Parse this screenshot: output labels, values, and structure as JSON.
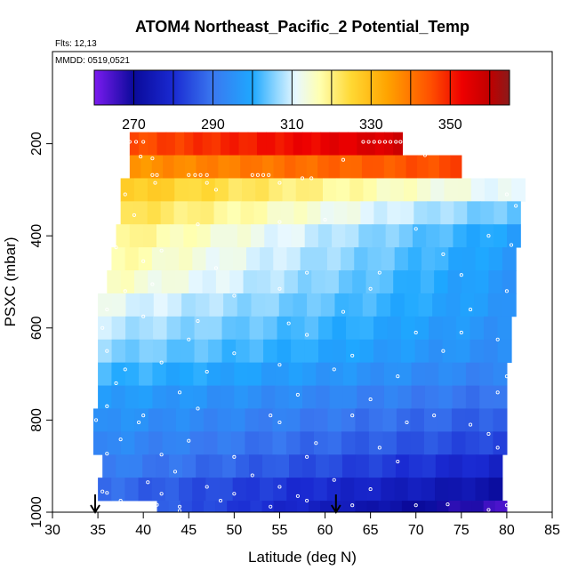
{
  "chart_data": {
    "type": "heatmap",
    "title": "ATOM4 Northeast_Pacific_2 Potential_Temp",
    "flights_label": "Flts: 12,13",
    "dates_label": "MMDD: 0519,0521",
    "xlabel": "Latitude (deg N)",
    "ylabel": "PSXC (mbar)",
    "xlim": [
      30,
      85
    ],
    "ylim": [
      1000,
      0
    ],
    "x_ticks": [
      30,
      35,
      40,
      45,
      50,
      55,
      60,
      65,
      70,
      75,
      80,
      85
    ],
    "y_ticks": [
      200,
      400,
      600,
      800,
      1000
    ],
    "colorbar": {
      "range": [
        260,
        365
      ],
      "ticks": [
        270,
        290,
        310,
        330,
        350
      ],
      "dividers": [
        270,
        280,
        290,
        300,
        310,
        320,
        330,
        340,
        350,
        360
      ],
      "stops": [
        {
          "v": 260,
          "c": "#7c1bf0"
        },
        {
          "v": 270,
          "c": "#0a0a9a"
        },
        {
          "v": 280,
          "c": "#1a2ad2"
        },
        {
          "v": 290,
          "c": "#3a78f0"
        },
        {
          "v": 300,
          "c": "#1ea8ff"
        },
        {
          "v": 306,
          "c": "#8fd6ff"
        },
        {
          "v": 311,
          "c": "#e8f8ff"
        },
        {
          "v": 317,
          "c": "#ffffb0"
        },
        {
          "v": 325,
          "c": "#ffd833"
        },
        {
          "v": 334,
          "c": "#ffa400"
        },
        {
          "v": 345,
          "c": "#ff5000"
        },
        {
          "v": 353,
          "c": "#ee0000"
        },
        {
          "v": 360,
          "c": "#c00000"
        },
        {
          "v": 365,
          "c": "#8b1a1a"
        }
      ]
    },
    "bands": [
      {
        "p": [
          175,
          225
        ],
        "lat": [
          38.5,
          68.5
        ],
        "t": [
          345,
          357
        ]
      },
      {
        "p": [
          225,
          275
        ],
        "lat": [
          38.5,
          75
        ],
        "t": [
          336,
          346
        ]
      },
      {
        "p": [
          275,
          325
        ],
        "lat": [
          37.5,
          82
        ],
        "t": [
          328,
          310
        ]
      },
      {
        "p": [
          325,
          375
        ],
        "lat": [
          37.5,
          81.5
        ],
        "t": [
          324,
          303
        ]
      },
      {
        "p": [
          375,
          425
        ],
        "lat": [
          37,
          81.5
        ],
        "t": [
          320,
          298
        ]
      },
      {
        "p": [
          425,
          475
        ],
        "lat": [
          36.5,
          81
        ],
        "t": [
          318,
          297
        ]
      },
      {
        "p": [
          475,
          525
        ],
        "lat": [
          36,
          81
        ],
        "t": [
          316,
          296
        ]
      },
      {
        "p": [
          525,
          575
        ],
        "lat": [
          35,
          81
        ],
        "t": [
          312,
          296
        ]
      },
      {
        "p": [
          575,
          625
        ],
        "lat": [
          35,
          80.5
        ],
        "t": [
          309,
          295
        ]
      },
      {
        "p": [
          625,
          675
        ],
        "lat": [
          35,
          80.5
        ],
        "t": [
          306,
          294
        ]
      },
      {
        "p": [
          675,
          725
        ],
        "lat": [
          35,
          80
        ],
        "t": [
          302,
          292
        ]
      },
      {
        "p": [
          725,
          775
        ],
        "lat": [
          35,
          80
        ],
        "t": [
          298,
          289
        ]
      },
      {
        "p": [
          775,
          825
        ],
        "lat": [
          34.5,
          80
        ],
        "t": [
          296,
          286
        ]
      },
      {
        "p": [
          825,
          875
        ],
        "lat": [
          34.5,
          80
        ],
        "t": [
          294,
          283
        ]
      },
      {
        "p": [
          875,
          925
        ],
        "lat": [
          35.5,
          79.5
        ],
        "t": [
          292,
          278
        ]
      },
      {
        "p": [
          925,
          975
        ],
        "lat": [
          35,
          79.5
        ],
        "t": [
          289,
          272
        ]
      },
      {
        "p": [
          975,
          1000
        ],
        "lat": [
          41.5,
          80
        ],
        "t": [
          287,
          265
        ]
      }
    ],
    "obs_points": [
      [
        38.5,
        196
      ],
      [
        39.2,
        196
      ],
      [
        40,
        196
      ],
      [
        64.2,
        196
      ],
      [
        64.8,
        196
      ],
      [
        65.4,
        196
      ],
      [
        66,
        196
      ],
      [
        66.6,
        196
      ],
      [
        67.2,
        196
      ],
      [
        67.8,
        196
      ],
      [
        68.3,
        196
      ],
      [
        69.5,
        218
      ],
      [
        71,
        225
      ],
      [
        39.7,
        228
      ],
      [
        41,
        232
      ],
      [
        62,
        235
      ],
      [
        41,
        268
      ],
      [
        41.5,
        268
      ],
      [
        45,
        268
      ],
      [
        45.7,
        268
      ],
      [
        46.3,
        268
      ],
      [
        47,
        268
      ],
      [
        52,
        268
      ],
      [
        52.6,
        268
      ],
      [
        53.2,
        268
      ],
      [
        53.8,
        268
      ],
      [
        57.5,
        275
      ],
      [
        58.5,
        275
      ],
      [
        41.3,
        285
      ],
      [
        47,
        285
      ],
      [
        55,
        285
      ],
      [
        48,
        300
      ],
      [
        38,
        310
      ],
      [
        80,
        310
      ],
      [
        81,
        335
      ],
      [
        39,
        355
      ],
      [
        60,
        365
      ],
      [
        55,
        370
      ],
      [
        46,
        375
      ],
      [
        70,
        385
      ],
      [
        80.5,
        420
      ],
      [
        78,
        400
      ],
      [
        37,
        425
      ],
      [
        42,
        432
      ],
      [
        73,
        440
      ],
      [
        40,
        455
      ],
      [
        48,
        470
      ],
      [
        58,
        480
      ],
      [
        66,
        480
      ],
      [
        75,
        485
      ],
      [
        41,
        505
      ],
      [
        55,
        515
      ],
      [
        65,
        515
      ],
      [
        80,
        520
      ],
      [
        38,
        520
      ],
      [
        50,
        530
      ],
      [
        36,
        560
      ],
      [
        62,
        565
      ],
      [
        76,
        560
      ],
      [
        40,
        575
      ],
      [
        46,
        585
      ],
      [
        56,
        590
      ],
      [
        35.5,
        600
      ],
      [
        45,
        625
      ],
      [
        58,
        615
      ],
      [
        70,
        610
      ],
      [
        75,
        610
      ],
      [
        79,
        625
      ],
      [
        36,
        650
      ],
      [
        50,
        655
      ],
      [
        63,
        660
      ],
      [
        73,
        650
      ],
      [
        42,
        675
      ],
      [
        55,
        680
      ],
      [
        38,
        690
      ],
      [
        47,
        695
      ],
      [
        61,
        690
      ],
      [
        68,
        705
      ],
      [
        80,
        705
      ],
      [
        37,
        720
      ],
      [
        44,
        740
      ],
      [
        57,
        745
      ],
      [
        65,
        755
      ],
      [
        79,
        740
      ],
      [
        36,
        770
      ],
      [
        46,
        775
      ],
      [
        40,
        790
      ],
      [
        54,
        790
      ],
      [
        63,
        790
      ],
      [
        72,
        790
      ],
      [
        34.8,
        800
      ],
      [
        39.5,
        805
      ],
      [
        55,
        805
      ],
      [
        69,
        805
      ],
      [
        76,
        810
      ],
      [
        78,
        830
      ],
      [
        37.5,
        842
      ],
      [
        45,
        845
      ],
      [
        59,
        850
      ],
      [
        66,
        860
      ],
      [
        79,
        860
      ],
      [
        36,
        873
      ],
      [
        42,
        875
      ],
      [
        50,
        880
      ],
      [
        58,
        880
      ],
      [
        68,
        890
      ],
      [
        43.5,
        912
      ],
      [
        52,
        920
      ],
      [
        61,
        930
      ],
      [
        40.5,
        935
      ],
      [
        47,
        945
      ],
      [
        55,
        945
      ],
      [
        65,
        950
      ],
      [
        35.5,
        955
      ],
      [
        36,
        958
      ],
      [
        42,
        960
      ],
      [
        50,
        960
      ],
      [
        57,
        965
      ],
      [
        37.5,
        975
      ],
      [
        41.5,
        984
      ],
      [
        44,
        988
      ],
      [
        48.5,
        975
      ],
      [
        54,
        988
      ],
      [
        58,
        975
      ],
      [
        63,
        985
      ],
      [
        70,
        985
      ],
      [
        73.5,
        983
      ],
      [
        78,
        995
      ],
      [
        80,
        985
      ],
      [
        37,
        995
      ],
      [
        44,
        997
      ]
    ],
    "flight_markers_lat": [
      34.7,
      61.2
    ]
  }
}
